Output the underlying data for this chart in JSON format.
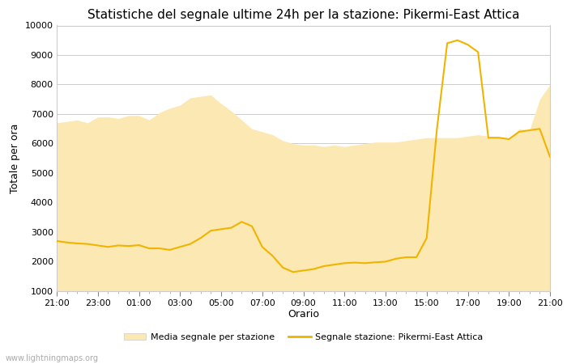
{
  "title": "Statistiche del segnale ultime 24h per la stazione: Pikermi-East Attica",
  "xlabel": "Orario",
  "ylabel": "Totale per ora",
  "watermark": "www.lightningmaps.org",
  "legend_fill_label": "Media segnale per stazione",
  "legend_line_label": "Segnale stazione: Pikermi-East Attica",
  "ylim": [
    1000,
    10000
  ],
  "yticks": [
    1000,
    2000,
    3000,
    4000,
    5000,
    6000,
    7000,
    8000,
    9000,
    10000
  ],
  "xtick_labels": [
    "21:00",
    "23:00",
    "01:00",
    "03:00",
    "05:00",
    "07:00",
    "09:00",
    "11:00",
    "13:00",
    "15:00",
    "17:00",
    "19:00",
    "21:00"
  ],
  "fill_color": "#fce8b2",
  "line_color": "#f0b400",
  "background_color": "#ffffff",
  "grid_color": "#cccccc",
  "title_fontsize": 11,
  "axis_fontsize": 9,
  "tick_fontsize": 8,
  "hours": [
    0,
    1,
    2,
    3,
    4,
    5,
    6,
    7,
    8,
    9,
    10,
    11,
    12,
    13,
    14,
    15,
    16,
    17,
    18,
    19,
    20,
    21,
    22,
    23,
    24,
    25,
    26,
    27,
    28,
    29,
    30,
    31,
    32,
    33,
    34,
    35,
    36,
    37,
    38,
    39,
    40,
    41,
    42,
    43,
    44,
    45,
    46,
    47,
    48
  ],
  "station_line": [
    2700,
    2650,
    2620,
    2600,
    2550,
    2500,
    2550,
    2530,
    2560,
    2450,
    2450,
    2400,
    2500,
    2600,
    2800,
    3050,
    3100,
    3150,
    3350,
    3200,
    2500,
    2200,
    1800,
    1650,
    1700,
    1750,
    1850,
    1900,
    1950,
    1970,
    1950,
    1980,
    2000,
    2100,
    2150,
    2150,
    2800,
    6500,
    9400,
    9500,
    9350,
    9100,
    6200,
    6200,
    6150,
    6400,
    6450,
    6500,
    5550
  ],
  "fill_upper": [
    6700,
    6750,
    6800,
    6700,
    6900,
    6900,
    6850,
    6950,
    6950,
    6800,
    7050,
    7200,
    7300,
    7550,
    7600,
    7650,
    7350,
    7100,
    6800,
    6500,
    6400,
    6300,
    6100,
    6000,
    5950,
    5950,
    5900,
    5950,
    5900,
    5950,
    6000,
    6050,
    6050,
    6050,
    6100,
    6150,
    6200,
    6200,
    6200,
    6200,
    6250,
    6300,
    6250,
    6200,
    6150,
    6500,
    6450,
    7500,
    8000
  ],
  "fill_lower": [
    1000,
    1000,
    1000,
    1000,
    1000,
    1000,
    1000,
    1000,
    1000,
    1000,
    1000,
    1000,
    1000,
    1000,
    1000,
    1000,
    1000,
    1000,
    1000,
    1000,
    1000,
    1000,
    1000,
    1000,
    1000,
    1000,
    1000,
    1000,
    1000,
    1000,
    1000,
    1000,
    1000,
    1000,
    1000,
    1000,
    1000,
    1000,
    1000,
    1000,
    1000,
    1000,
    1000,
    1000,
    1000,
    1000,
    1000,
    1000,
    1000
  ]
}
